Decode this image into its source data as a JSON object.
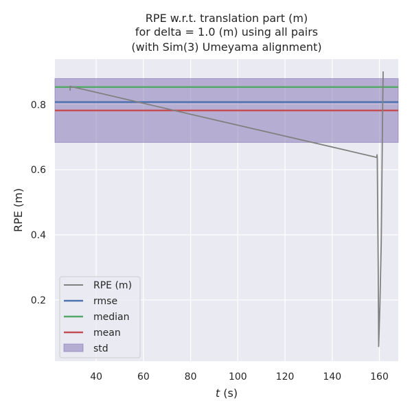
{
  "chart_data": {
    "type": "line",
    "title_lines": [
      "RPE w.r.t. translation part (m)",
      "for delta = 1.0 (m) using all pairs",
      "(with Sim(3) Umeyama alignment)"
    ],
    "xlabel_italic": "t",
    "xlabel_rest": " (s)",
    "ylabel": "RPE (m)",
    "xlim": [
      22.5,
      168
    ],
    "ylim": [
      0.012,
      0.94
    ],
    "x_ticks": [
      40,
      60,
      80,
      100,
      120,
      140,
      160
    ],
    "x_tick_labels": [
      "40",
      "60",
      "80",
      "100",
      "120",
      "140",
      "160"
    ],
    "y_ticks": [
      0.2,
      0.4,
      0.6,
      0.8
    ],
    "y_tick_labels": [
      "0.2",
      "0.4",
      "0.6",
      "0.8"
    ],
    "grid": true,
    "legend_position": "lower-left",
    "background_color": "#eaeaf2",
    "series": [
      {
        "name": "RPE (m)",
        "color": "#808080",
        "x": [
          28.9,
          29.0,
          29.1,
          158.9,
          159.0,
          159.1,
          159.5,
          159.7,
          160.2,
          160.8,
          161.4,
          161.6
        ],
        "y": [
          0.843,
          0.857,
          0.856,
          0.638,
          0.646,
          0.634,
          0.3,
          0.057,
          0.18,
          0.38,
          0.8,
          0.902
        ]
      }
    ],
    "stats": {
      "rmse": {
        "label": "rmse",
        "value": 0.808,
        "color": "#4c72b0"
      },
      "median": {
        "label": "median",
        "value": 0.854,
        "color": "#55a868"
      },
      "mean": {
        "label": "mean",
        "value": 0.782,
        "color": "#c44e52"
      },
      "std": {
        "label": "std",
        "value": 0.098,
        "color": "#8172b2"
      }
    }
  }
}
